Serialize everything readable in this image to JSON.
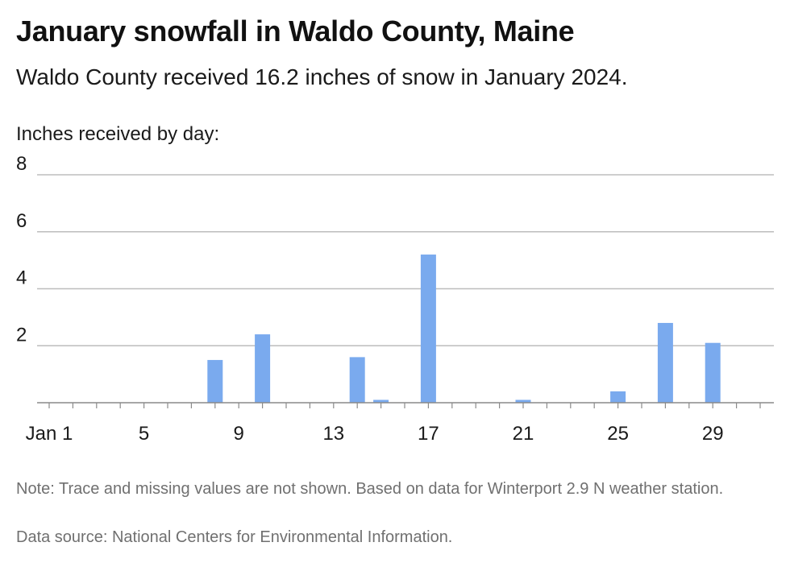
{
  "header": {
    "title": "January snowfall in Waldo County, Maine",
    "subtitle": "Waldo County received 16.2 inches of snow in January 2024."
  },
  "footer": {
    "note": "Note: Trace and missing values are not shown. Based on data for Winterport 2.9 N weather station.",
    "source": "Data source: National Centers for Environmental Information."
  },
  "chart_data": {
    "type": "bar",
    "title": "January snowfall in Waldo County, Maine",
    "subtitle": "Waldo County received 16.2 inches of snow in January 2024.",
    "ylabel": "Inches received by day:",
    "xlabel": "",
    "ylim": [
      0,
      8
    ],
    "yticks": [
      2,
      4,
      6,
      8
    ],
    "xlim": [
      1,
      31
    ],
    "xticks": [
      {
        "value": 1,
        "label": "Jan 1"
      },
      {
        "value": 5,
        "label": "5"
      },
      {
        "value": 9,
        "label": "9"
      },
      {
        "value": 13,
        "label": "13"
      },
      {
        "value": 17,
        "label": "17"
      },
      {
        "value": 21,
        "label": "21"
      },
      {
        "value": 25,
        "label": "25"
      },
      {
        "value": 29,
        "label": "29"
      }
    ],
    "grid": true,
    "bar_color": "#7aaaee",
    "points": [
      {
        "day": 8,
        "value": 1.5
      },
      {
        "day": 10,
        "value": 2.4
      },
      {
        "day": 14,
        "value": 1.6
      },
      {
        "day": 15,
        "value": 0.1
      },
      {
        "day": 17,
        "value": 5.2
      },
      {
        "day": 21,
        "value": 0.1
      },
      {
        "day": 25,
        "value": 0.4
      },
      {
        "day": 27,
        "value": 2.8
      },
      {
        "day": 29,
        "value": 2.1
      }
    ]
  }
}
